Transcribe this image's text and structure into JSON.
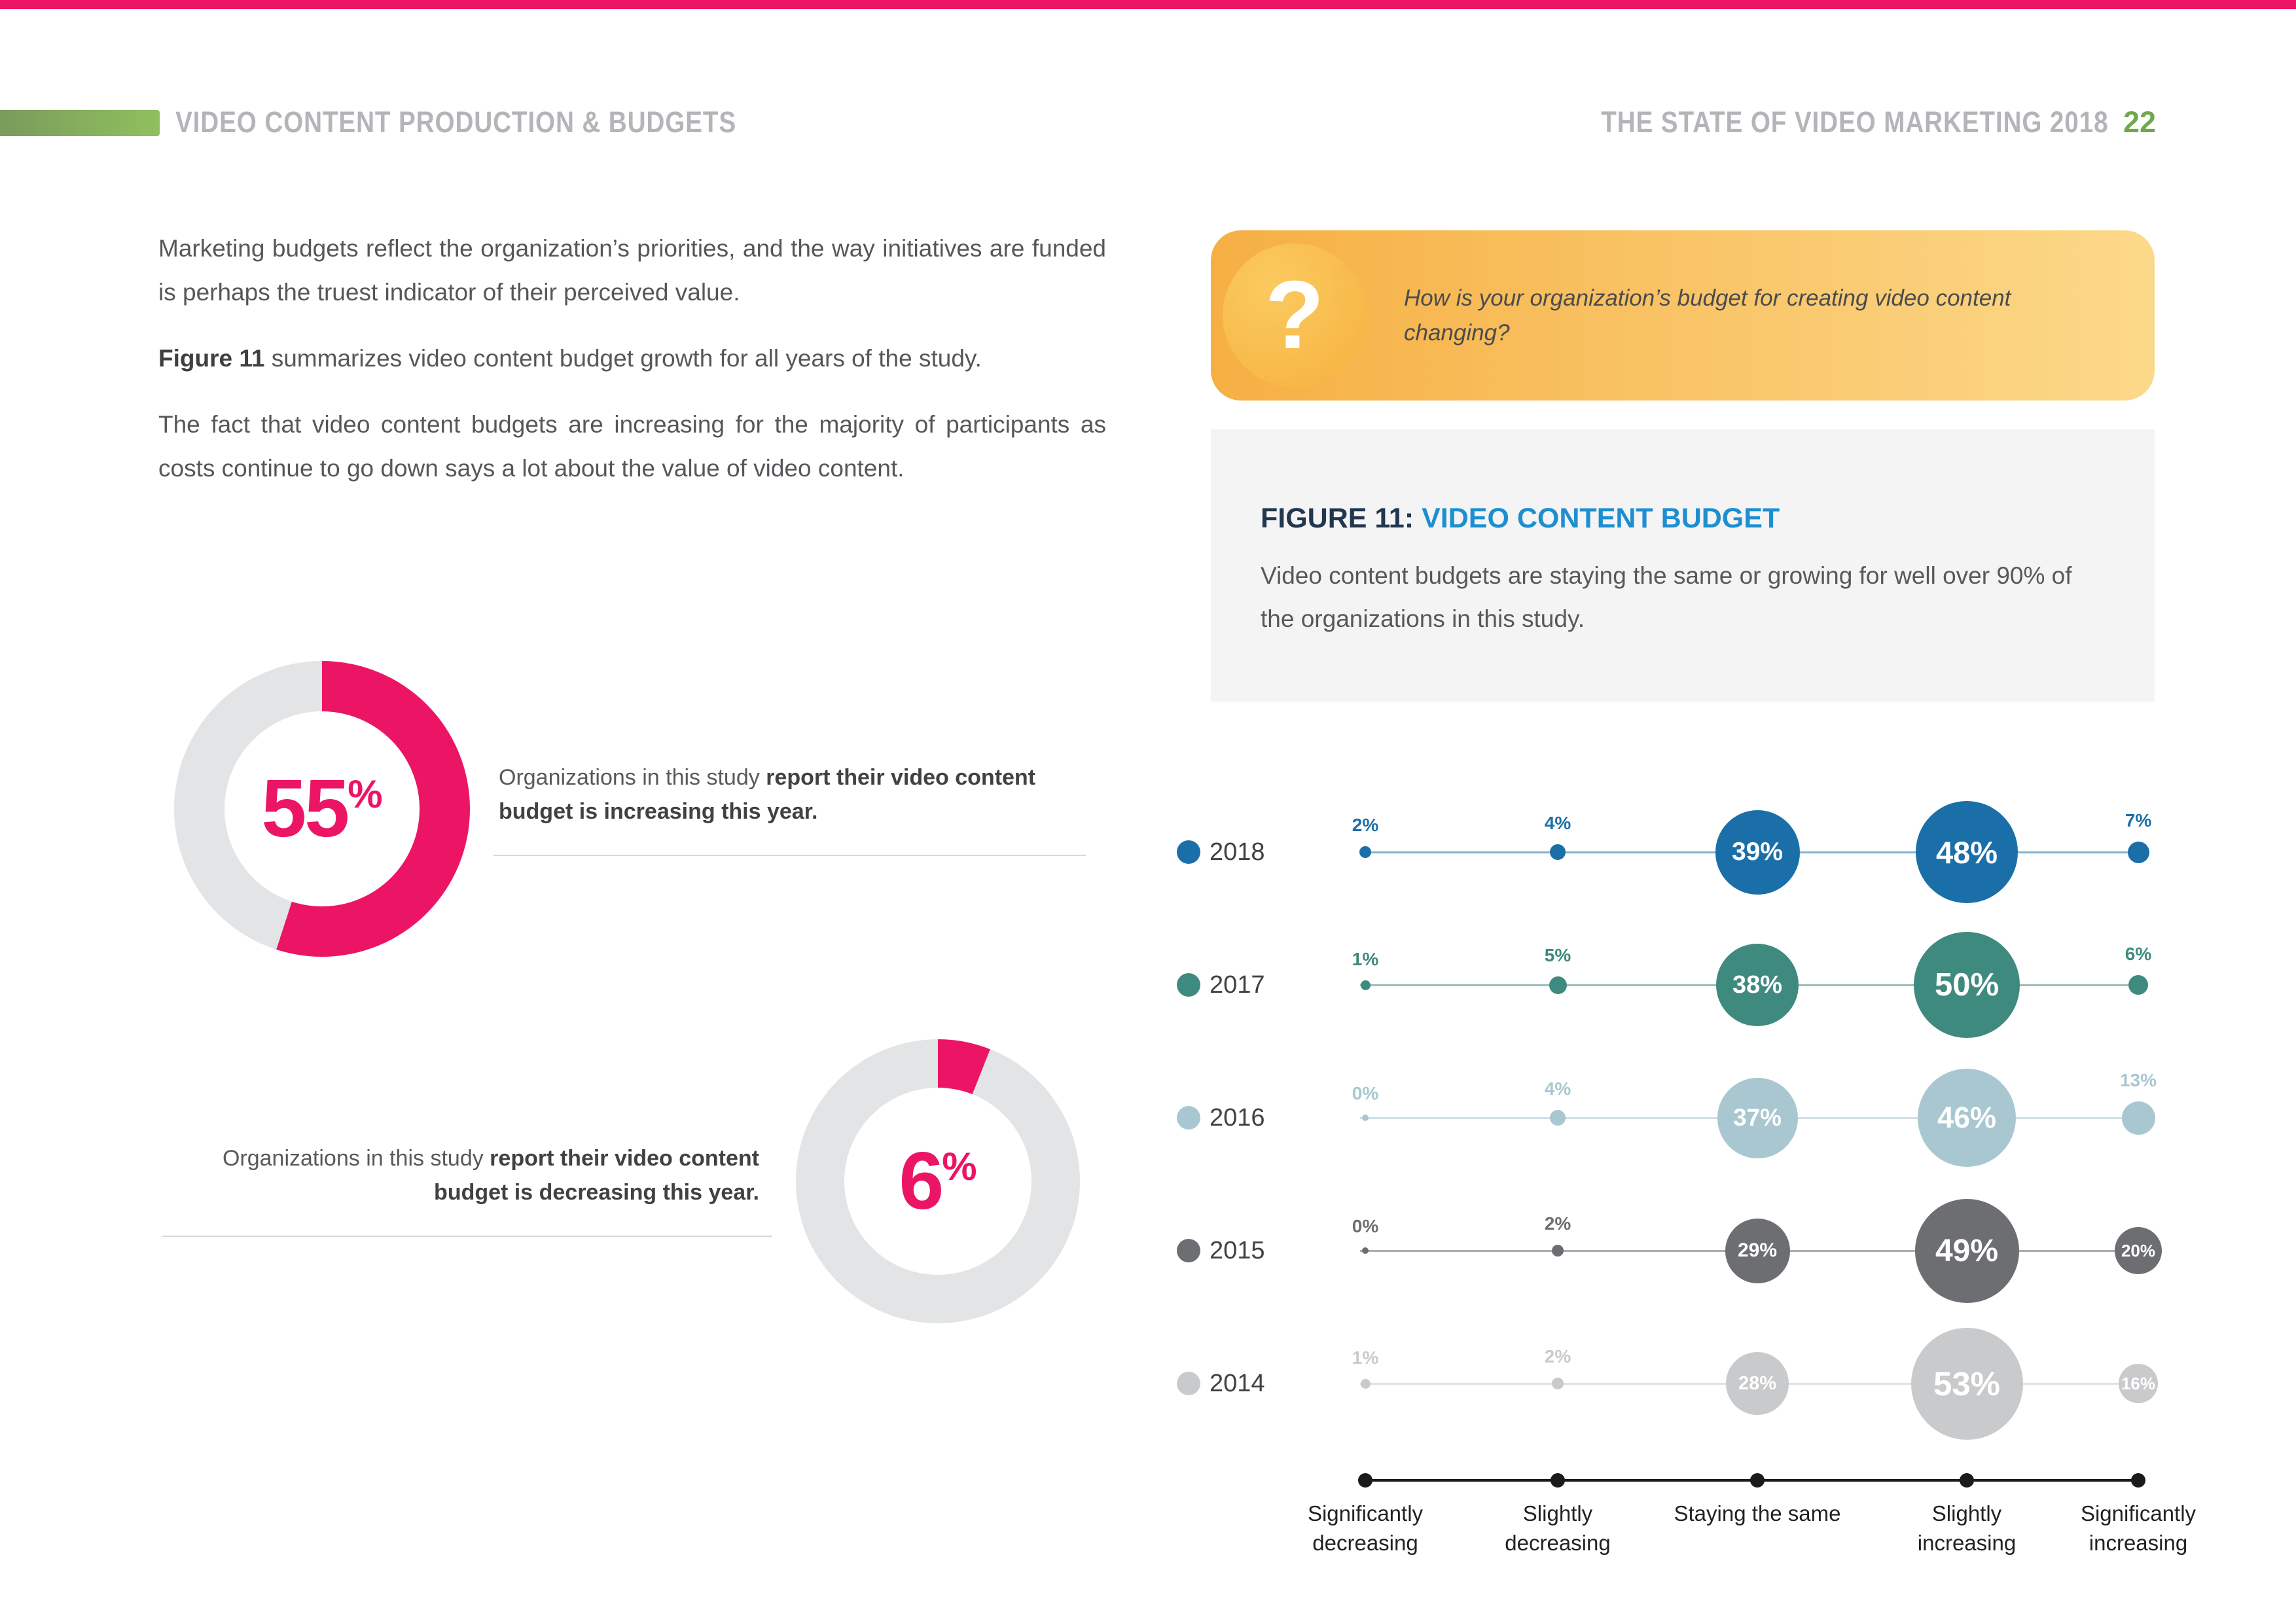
{
  "header": {
    "section_title": "VIDEO CONTENT PRODUCTION & BUDGETS",
    "report_title": "THE STATE OF VIDEO MARKETING 2018",
    "page_number": "22"
  },
  "intro": {
    "p1": "Marketing budgets reflect the organization’s priorities, and the way initiatives are funded is perhaps the truest indicator of their perceived value.",
    "p2_lead": "Figure 11",
    "p2_rest": " summarizes video content budget growth for all years of the study.",
    "p3": "The fact that video content budgets are increasing for the majority of participants as costs continue to go down says a lot about the value of video content."
  },
  "donut_increasing": {
    "value": 55,
    "number": "55",
    "unit": "%",
    "caption_lead": "Organizations in this study ",
    "caption_bold": "report their video content budget is increasing this year."
  },
  "donut_decreasing": {
    "value": 6,
    "number": "6",
    "unit": "%",
    "caption_lead": "Organizations in this study ",
    "caption_bold": "report their video content budget is decreasing this year."
  },
  "question_box": {
    "icon": "?",
    "question": "How is your organization’s budget for creating video content changing?"
  },
  "figure": {
    "label": "FIGURE 11:",
    "title": "VIDEO CONTENT BUDGET",
    "subtitle": "Video content budgets are staying the same or growing for well over 90% of the organizations in this study."
  },
  "chart_data": {
    "type": "bubble",
    "title": "Video content budget change by year",
    "categories": [
      "Significantly decreasing",
      "Slightly decreasing",
      "Staying the same",
      "Slightly increasing",
      "Significantly increasing"
    ],
    "series": [
      {
        "name": "2018",
        "color": "#1B6FA8",
        "values": [
          2,
          4,
          39,
          48,
          7
        ]
      },
      {
        "name": "2017",
        "color": "#3F8A7E",
        "values": [
          1,
          5,
          38,
          50,
          6
        ]
      },
      {
        "name": "2016",
        "color": "#A9C7D1",
        "values": [
          0,
          4,
          37,
          46,
          13
        ]
      },
      {
        "name": "2015",
        "color": "#6D6E71",
        "values": [
          0,
          2,
          29,
          49,
          20
        ]
      },
      {
        "name": "2014",
        "color": "#C9CACC",
        "values": [
          1,
          2,
          28,
          53,
          16
        ]
      }
    ],
    "value_unit": "%",
    "inside_label_threshold": 16,
    "legend_position": "left",
    "axis_color": "#1B1B1B"
  },
  "colors": {
    "accent_pink": "#EC1565",
    "accent_green": "#70A84B",
    "donut_track_gray": "#E3E4E5",
    "figure_title_blue": "#1D8FD0"
  }
}
